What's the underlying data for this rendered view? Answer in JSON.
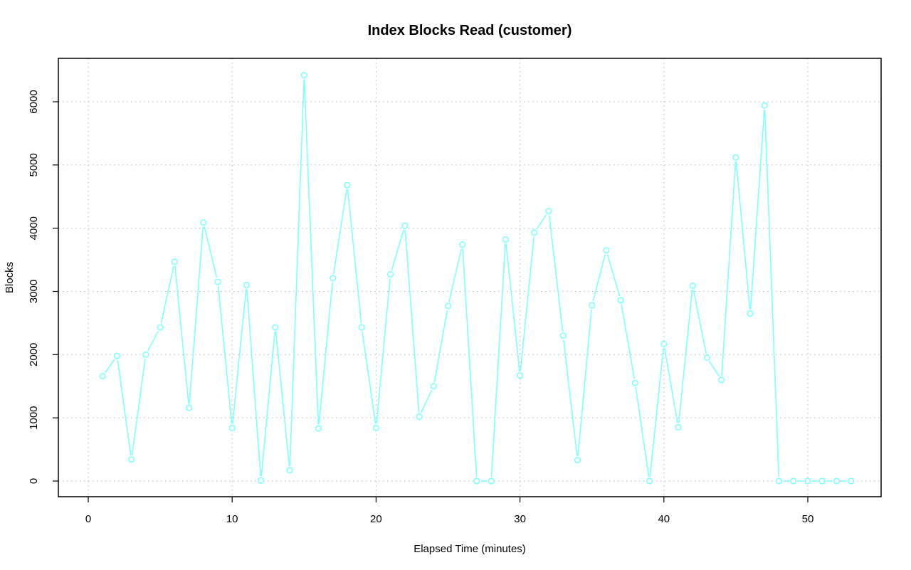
{
  "chart_data": {
    "type": "line",
    "title": "Index Blocks Read (customer)",
    "xlabel": "Elapsed Time (minutes)",
    "ylabel": "Blocks",
    "xlim": [
      0,
      55
    ],
    "ylim": [
      0,
      6500
    ],
    "xticks": [
      0,
      10,
      20,
      30,
      40,
      50
    ],
    "yticks": [
      0,
      1000,
      2000,
      3000,
      4000,
      5000,
      6000
    ],
    "grid": true,
    "series_color": "#7fffff",
    "series": [
      {
        "x": [
          1,
          2,
          3,
          4,
          5,
          6,
          7,
          8,
          9,
          10,
          11,
          12,
          13,
          14,
          15,
          16,
          17,
          18,
          19,
          20,
          21,
          22,
          23,
          24,
          25,
          26,
          27,
          28,
          29,
          30,
          31,
          32,
          33,
          34,
          35,
          36,
          37,
          38,
          39,
          40,
          41,
          42,
          43,
          44,
          45,
          46,
          47,
          48,
          49,
          50,
          51,
          52,
          53
        ],
        "values": [
          1660,
          1980,
          340,
          2000,
          2430,
          3470,
          1160,
          4090,
          3150,
          840,
          3100,
          10,
          2430,
          170,
          6420,
          830,
          3210,
          4680,
          2430,
          840,
          3270,
          4040,
          1020,
          1500,
          2770,
          3740,
          0,
          0,
          3820,
          1670,
          3930,
          4270,
          2300,
          330,
          2780,
          3650,
          2860,
          1550,
          0,
          2170,
          850,
          3090,
          1950,
          1600,
          5120,
          2650,
          5940,
          0,
          0,
          0,
          0,
          0,
          0
        ]
      }
    ]
  }
}
